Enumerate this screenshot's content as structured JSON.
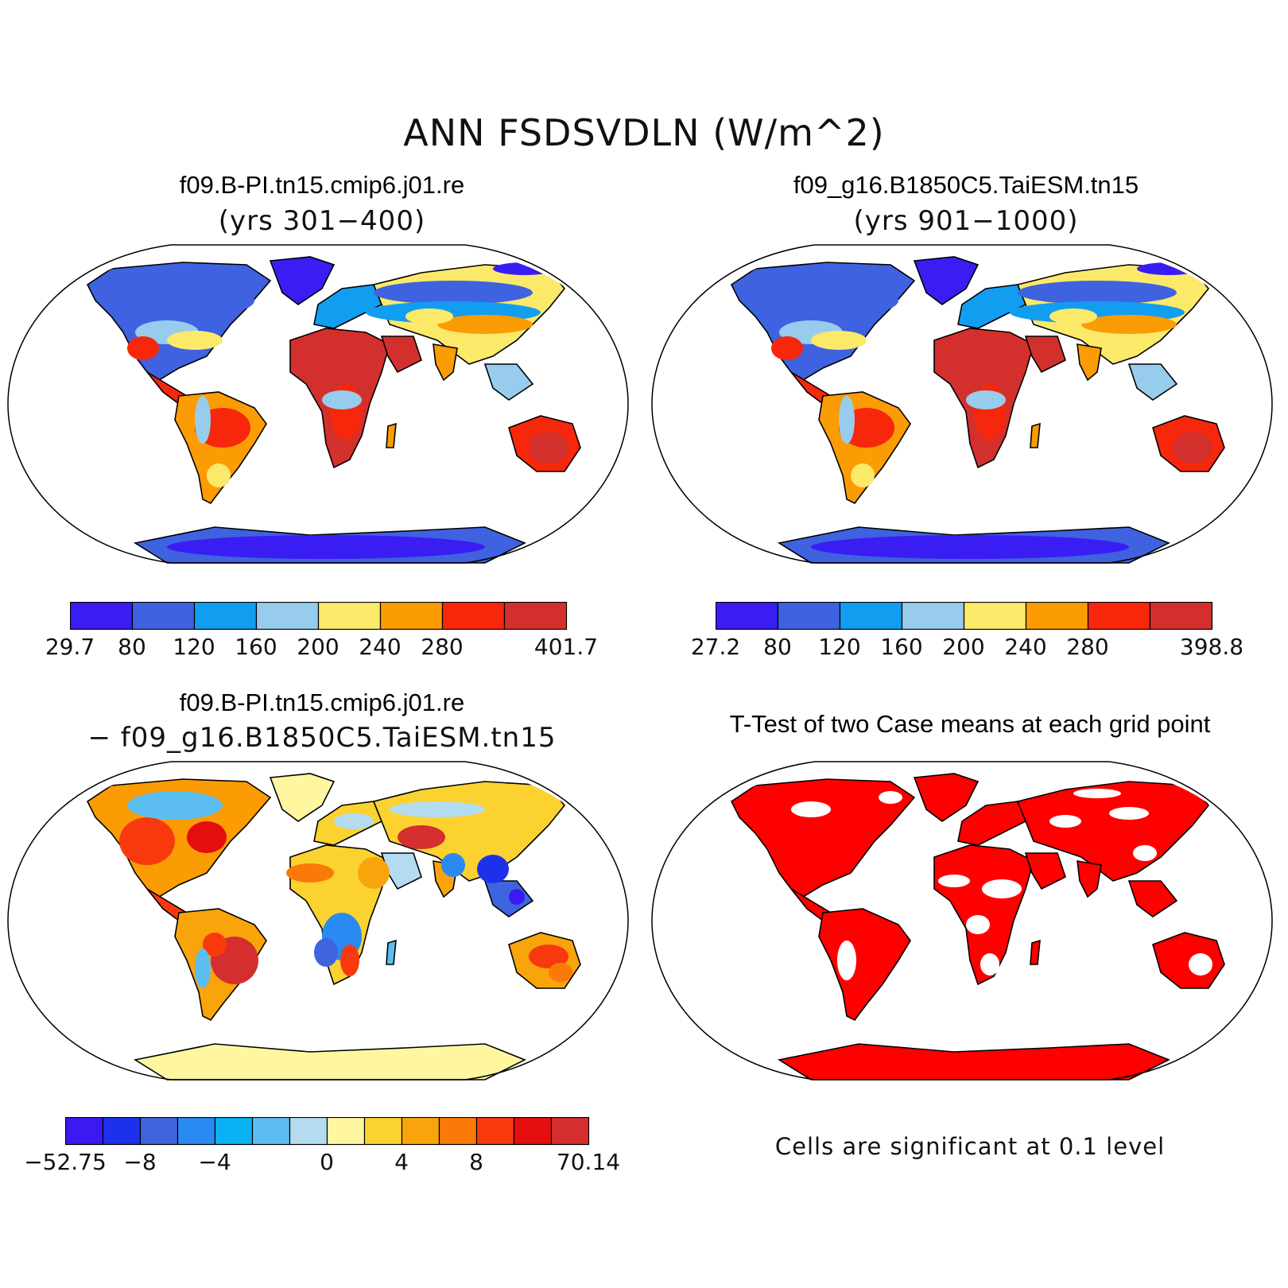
{
  "figure": {
    "title": "ANN FSDSVDLN (W/m^2)"
  },
  "panels": [
    {
      "title": "f09.B-PI.tn15.cmip6.j01.re",
      "subtitle": "(yrs 301−400)",
      "colorbar": {
        "colors": [
          "#3a1df2",
          "#3f62e0",
          "#129ef0",
          "#98ccec",
          "#fbe96a",
          "#fb9c05",
          "#f7270c",
          "#d3302d"
        ],
        "labels": [
          "29.7",
          "80",
          "120",
          "160",
          "200",
          "240",
          "280",
          "401.7"
        ]
      }
    },
    {
      "title": "f09_g16.B1850C5.TaiESM.tn15",
      "subtitle": "(yrs 901−1000)",
      "colorbar": {
        "colors": [
          "#3a1df2",
          "#3f62e0",
          "#129ef0",
          "#98ccec",
          "#fbe96a",
          "#fb9c05",
          "#f7270c",
          "#d3302d"
        ],
        "labels": [
          "27.2",
          "80",
          "120",
          "160",
          "200",
          "240",
          "280",
          "398.8"
        ]
      }
    },
    {
      "title": "f09.B-PI.tn15.cmip6.j01.re",
      "subtitle": "− f09_g16.B1850C5.TaiESM.tn15",
      "colorbar": {
        "colors": [
          "#3b19f3",
          "#1d31eb",
          "#3e65de",
          "#2b8af2",
          "#0ab2f3",
          "#5cbdf0",
          "#b3dcf0",
          "#fef7a0",
          "#fcd230",
          "#f9a40a",
          "#fa7a08",
          "#f8390e",
          "#e40e0e",
          "#d42e2e"
        ],
        "labels": [
          "−52.75",
          "−8",
          "−4",
          "0",
          "4",
          "8",
          "70.14"
        ],
        "label_positions": [
          0,
          2,
          4,
          7,
          9,
          11,
          14
        ]
      }
    },
    {
      "title": "T-Test of two Case means at each grid point",
      "note": "Cells are significant at 0.1 level",
      "significant_color": "#ff0000"
    }
  ]
}
